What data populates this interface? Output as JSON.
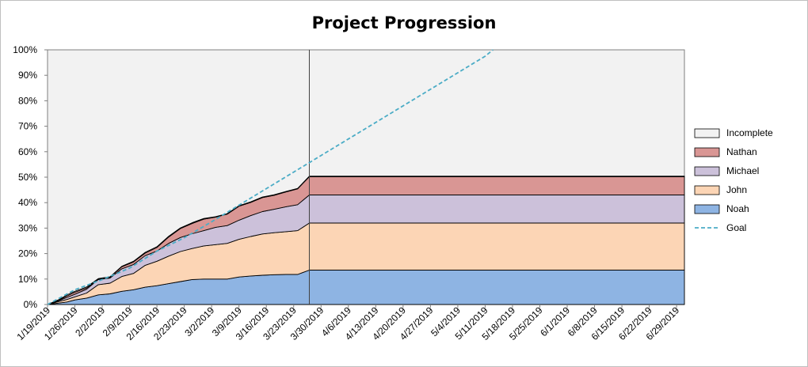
{
  "chart_data": {
    "type": "area",
    "title": "Project Progression",
    "xlabel": "",
    "ylabel": "",
    "ylim": [
      0,
      1
    ],
    "y_ticks": [
      "0%",
      "10%",
      "20%",
      "30%",
      "40%",
      "50%",
      "60%",
      "70%",
      "80%",
      "90%",
      "100%"
    ],
    "x_ticks": [
      "1/19/2019",
      "1/26/2019",
      "2/2/2019",
      "2/9/2019",
      "2/16/2019",
      "2/23/2019",
      "3/2/2019",
      "3/9/2019",
      "3/16/2019",
      "3/23/2019",
      "3/30/2019",
      "4/6/2019",
      "4/13/2019",
      "4/20/2019",
      "4/27/2019",
      "5/4/2019",
      "5/11/2019",
      "5/18/2019",
      "5/25/2019",
      "6/1/2019",
      "6/8/2019",
      "6/15/2019",
      "6/22/2019",
      "6/29/2019"
    ],
    "x_range": [
      "2019-01-19",
      "2019-07-01"
    ],
    "today_marker": "2019-03-27",
    "legend_position": "right",
    "stack_order": [
      "Noah",
      "John",
      "Michael",
      "Nathan",
      "Incomplete"
    ],
    "x": [
      "2019-01-19",
      "2019-01-22",
      "2019-01-24",
      "2019-01-26",
      "2019-01-29",
      "2019-02-01",
      "2019-02-04",
      "2019-02-07",
      "2019-02-10",
      "2019-02-13",
      "2019-02-16",
      "2019-02-19",
      "2019-02-22",
      "2019-02-25",
      "2019-02-28",
      "2019-03-03",
      "2019-03-06",
      "2019-03-09",
      "2019-03-12",
      "2019-03-15",
      "2019-03-18",
      "2019-03-21",
      "2019-03-24",
      "2019-03-27",
      "2019-07-01"
    ],
    "series": [
      {
        "name": "Noah",
        "color": "#8eb4e3",
        "values": [
          0.0,
          0.006,
          0.01,
          0.018,
          0.025,
          0.038,
          0.042,
          0.052,
          0.058,
          0.068,
          0.074,
          0.082,
          0.09,
          0.098,
          0.1,
          0.1,
          0.1,
          0.108,
          0.112,
          0.115,
          0.117,
          0.118,
          0.118,
          0.135,
          0.135
        ]
      },
      {
        "name": "John",
        "color": "#fcd5b5",
        "values": [
          0.0,
          0.006,
          0.01,
          0.012,
          0.02,
          0.04,
          0.042,
          0.058,
          0.064,
          0.086,
          0.096,
          0.108,
          0.118,
          0.122,
          0.13,
          0.135,
          0.14,
          0.148,
          0.155,
          0.162,
          0.165,
          0.168,
          0.172,
          0.185,
          0.185
        ]
      },
      {
        "name": "Michael",
        "color": "#ccc1da",
        "values": [
          0.0,
          0.004,
          0.008,
          0.01,
          0.015,
          0.02,
          0.02,
          0.03,
          0.035,
          0.038,
          0.04,
          0.05,
          0.055,
          0.058,
          0.06,
          0.068,
          0.07,
          0.075,
          0.082,
          0.088,
          0.092,
          0.098,
          0.102,
          0.11,
          0.11
        ]
      },
      {
        "name": "Nathan",
        "color": "#d99694",
        "values": [
          0.0,
          0.002,
          0.006,
          0.008,
          0.005,
          0.002,
          0.003,
          0.008,
          0.01,
          0.01,
          0.014,
          0.025,
          0.035,
          0.04,
          0.045,
          0.04,
          0.045,
          0.055,
          0.052,
          0.055,
          0.055,
          0.058,
          0.062,
          0.072,
          0.072
        ]
      },
      {
        "name": "Incomplete",
        "color": "#f2f2f2",
        "values": [
          0.0,
          0.002,
          0.004,
          0.004,
          0.004,
          0.002,
          0.002,
          0.002,
          0.003,
          0.003,
          0.003,
          0.003,
          0.003,
          0.003,
          0.003,
          0.002,
          0.002,
          0.002,
          0.002,
          0.002,
          0.002,
          0.002,
          0.002,
          0.002,
          0.002
        ]
      }
    ],
    "goal": {
      "name": "Goal",
      "color": "#4bacc6",
      "dash": true,
      "points": [
        [
          "2019-01-19",
          0.0
        ],
        [
          "2019-01-26",
          0.058
        ],
        [
          "2019-02-02",
          0.098
        ],
        [
          "2019-02-09",
          0.143
        ],
        [
          "2019-02-16",
          0.21
        ],
        [
          "2019-02-23",
          0.262
        ],
        [
          "2019-03-02",
          0.325
        ],
        [
          "2019-03-09",
          0.39
        ],
        [
          "2019-03-16",
          0.455
        ],
        [
          "2019-03-23",
          0.52
        ],
        [
          "2019-03-30",
          0.585
        ],
        [
          "2019-04-06",
          0.65
        ],
        [
          "2019-04-13",
          0.715
        ],
        [
          "2019-04-20",
          0.78
        ],
        [
          "2019-04-27",
          0.845
        ],
        [
          "2019-05-04",
          0.91
        ],
        [
          "2019-05-11",
          0.975
        ],
        [
          "2019-05-13",
          1.0
        ]
      ]
    },
    "legend": [
      {
        "name": "Incomplete",
        "color": "#f2f2f2",
        "kind": "box"
      },
      {
        "name": "Nathan",
        "color": "#d99694",
        "kind": "box"
      },
      {
        "name": "Michael",
        "color": "#ccc1da",
        "kind": "box"
      },
      {
        "name": "John",
        "color": "#fcd5b5",
        "kind": "box"
      },
      {
        "name": "Noah",
        "color": "#8eb4e3",
        "kind": "box"
      },
      {
        "name": "Goal",
        "color": "#4bacc6",
        "kind": "dash"
      }
    ],
    "plot_background": "#f2f2f2"
  }
}
